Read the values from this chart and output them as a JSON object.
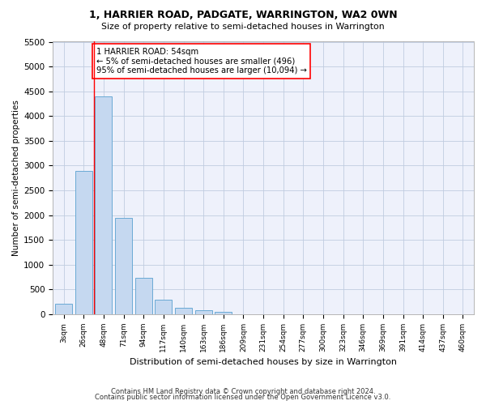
{
  "title1": "1, HARRIER ROAD, PADGATE, WARRINGTON, WA2 0WN",
  "title2": "Size of property relative to semi-detached houses in Warrington",
  "xlabel": "Distribution of semi-detached houses by size in Warrington",
  "ylabel": "Number of semi-detached properties",
  "bar_labels": [
    "3sqm",
    "26sqm",
    "48sqm",
    "71sqm",
    "94sqm",
    "117sqm",
    "140sqm",
    "163sqm",
    "186sqm",
    "209sqm",
    "231sqm",
    "254sqm",
    "277sqm",
    "300sqm",
    "323sqm",
    "346sqm",
    "369sqm",
    "391sqm",
    "414sqm",
    "437sqm",
    "460sqm"
  ],
  "bar_values": [
    220,
    2900,
    4400,
    1950,
    730,
    290,
    125,
    90,
    55,
    0,
    0,
    0,
    0,
    0,
    0,
    0,
    0,
    0,
    0,
    0,
    0
  ],
  "bar_color": "#c5d8f0",
  "bar_edge_color": "#6aaad4",
  "annotation_text": "1 HARRIER ROAD: 54sqm\n← 5% of semi-detached houses are smaller (496)\n95% of semi-detached houses are larger (10,094) →",
  "vline_x_index": 1.5,
  "ylim": [
    0,
    5500
  ],
  "yticks": [
    0,
    500,
    1000,
    1500,
    2000,
    2500,
    3000,
    3500,
    4000,
    4500,
    5000,
    5500
  ],
  "footer1": "Contains HM Land Registry data © Crown copyright and database right 2024.",
  "footer2": "Contains public sector information licensed under the Open Government Licence v3.0.",
  "bg_color": "#eef1fb",
  "grid_color": "#c0cce0"
}
